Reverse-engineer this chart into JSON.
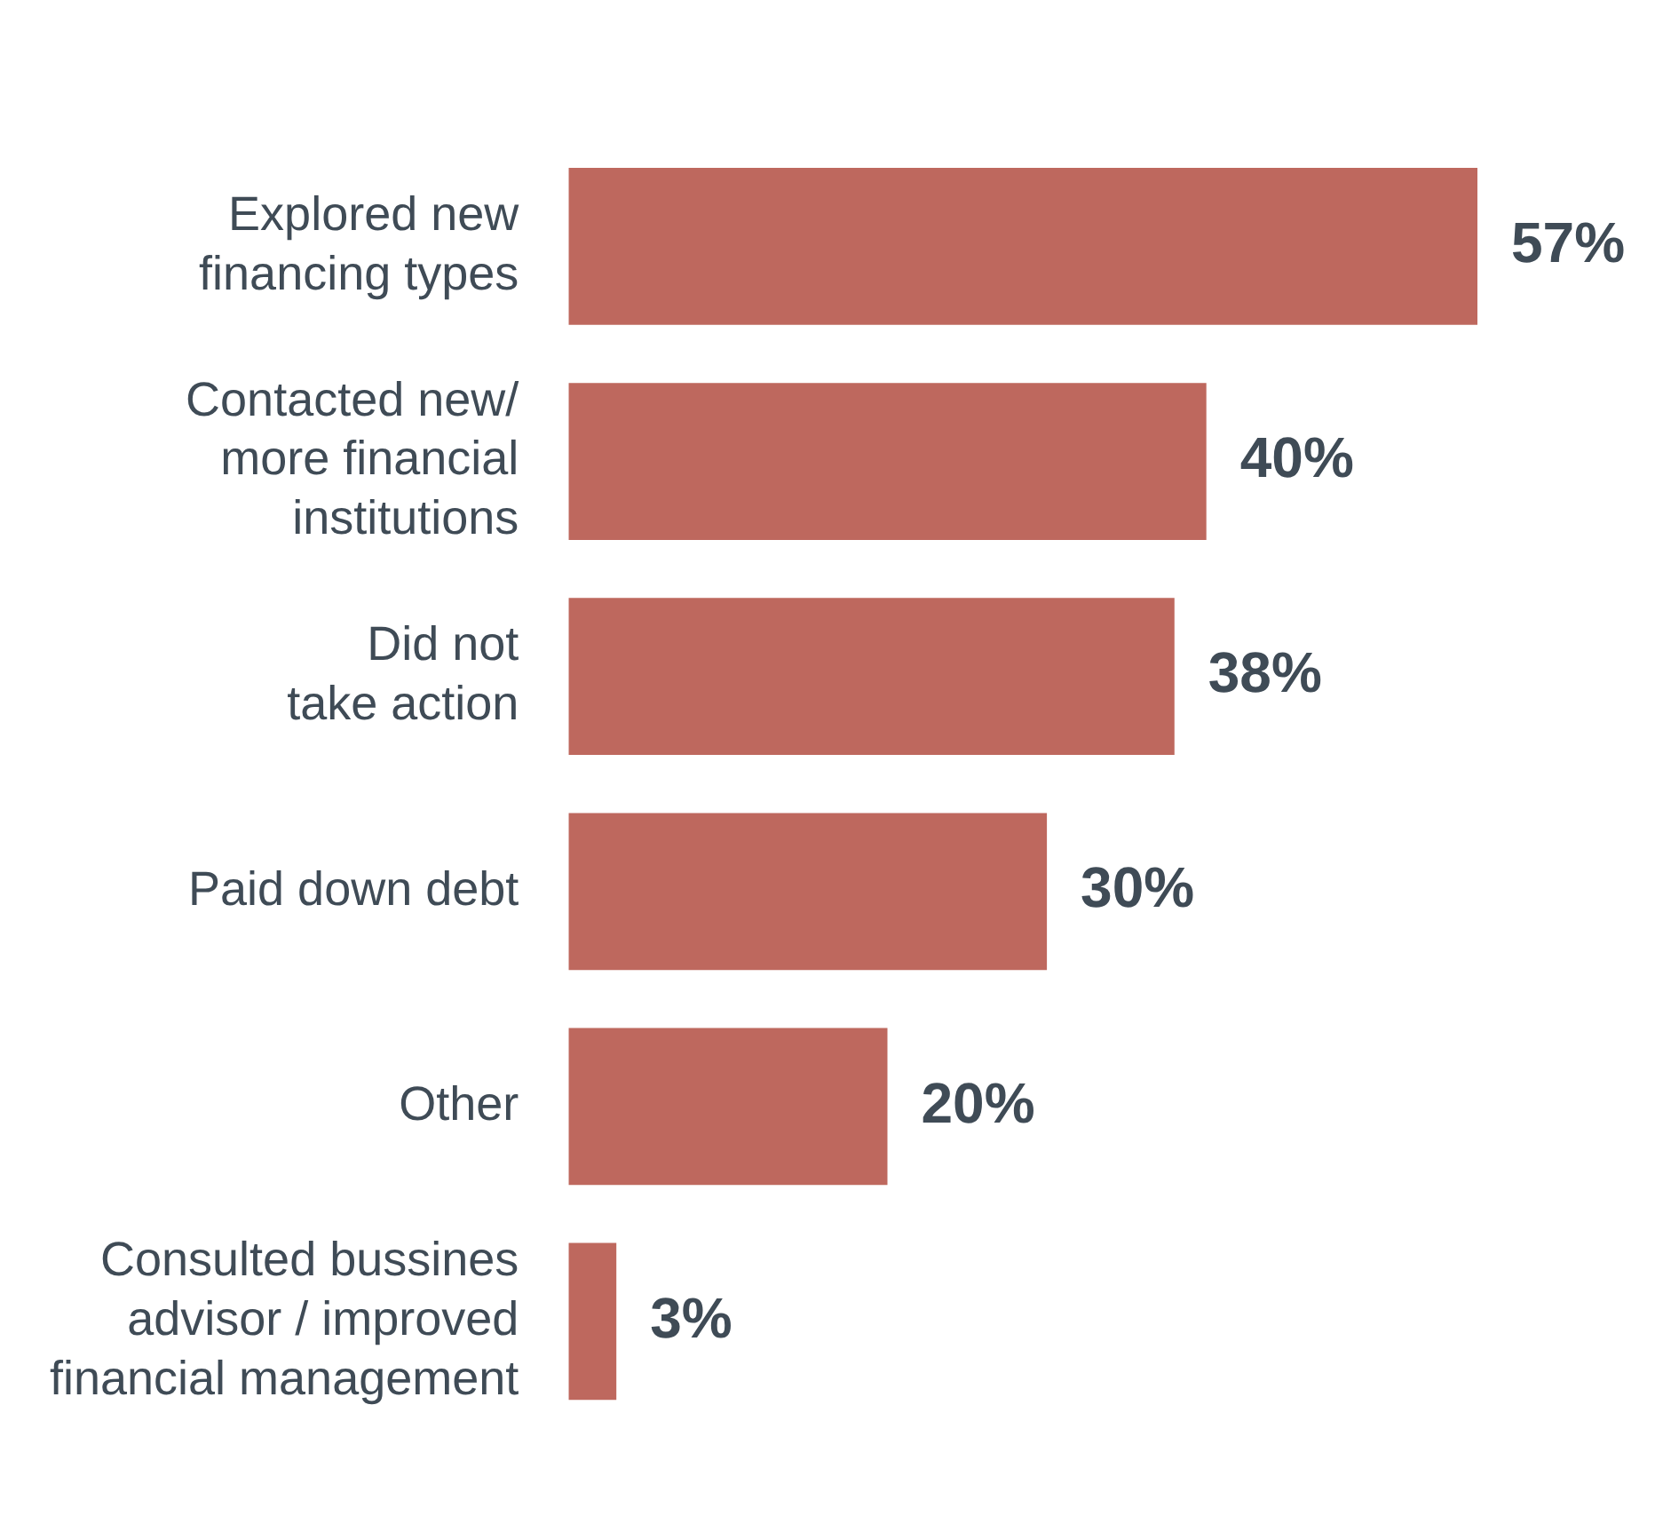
{
  "chart_data": {
    "type": "bar",
    "orientation": "horizontal",
    "categories": [
      "Explored new\nfinancing types",
      "Contacted new/\nmore financial\ninstitutions",
      "Did not\ntake action",
      "Paid down debt",
      "Other",
      "Consulted bussines\nadvisor / improved\nfinancial management"
    ],
    "values": [
      57,
      40,
      38,
      30,
      20,
      3
    ],
    "value_labels": [
      "57%",
      "40%",
      "38%",
      "30%",
      "20%",
      "3%"
    ],
    "color": "#be685e",
    "tick_labels": "y"
  }
}
